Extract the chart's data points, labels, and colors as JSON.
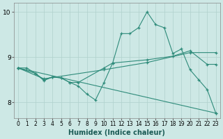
{
  "xlabel": "Humidex (Indice chaleur)",
  "ylabel": "",
  "background_color": "#cde8e5",
  "line_color": "#2e8b7a",
  "grid_color": "#b0d0cc",
  "xlim": [
    -0.5,
    23.5
  ],
  "ylim": [
    7.65,
    10.2
  ],
  "yticks": [
    8,
    9,
    10
  ],
  "xticks": [
    0,
    1,
    2,
    3,
    4,
    5,
    6,
    7,
    8,
    9,
    10,
    11,
    12,
    13,
    14,
    15,
    16,
    17,
    18,
    19,
    20,
    21,
    22,
    23
  ],
  "series": [
    {
      "x": [
        0,
        1,
        2,
        3,
        4,
        5,
        6,
        7,
        8,
        9,
        10,
        11,
        12,
        13,
        14,
        15,
        16,
        17,
        18,
        19,
        20,
        21,
        22,
        23
      ],
      "y": [
        8.76,
        8.76,
        8.64,
        8.48,
        8.56,
        8.54,
        8.44,
        8.36,
        8.18,
        8.05,
        8.44,
        8.87,
        9.52,
        9.52,
        9.65,
        10.0,
        9.72,
        9.65,
        9.08,
        9.18,
        8.72,
        8.5,
        8.28,
        7.76
      ]
    },
    {
      "x": [
        0,
        2,
        3,
        4,
        5,
        6,
        7,
        10,
        11,
        15,
        18,
        20,
        22,
        23
      ],
      "y": [
        8.76,
        8.64,
        8.5,
        8.56,
        8.54,
        8.44,
        8.44,
        8.76,
        8.87,
        8.94,
        9.02,
        9.14,
        8.84,
        8.84
      ]
    },
    {
      "x": [
        0,
        3,
        10,
        15,
        20,
        23
      ],
      "y": [
        8.76,
        8.52,
        8.72,
        8.88,
        9.1,
        9.1
      ]
    },
    {
      "x": [
        0,
        23
      ],
      "y": [
        8.76,
        7.76
      ]
    }
  ]
}
